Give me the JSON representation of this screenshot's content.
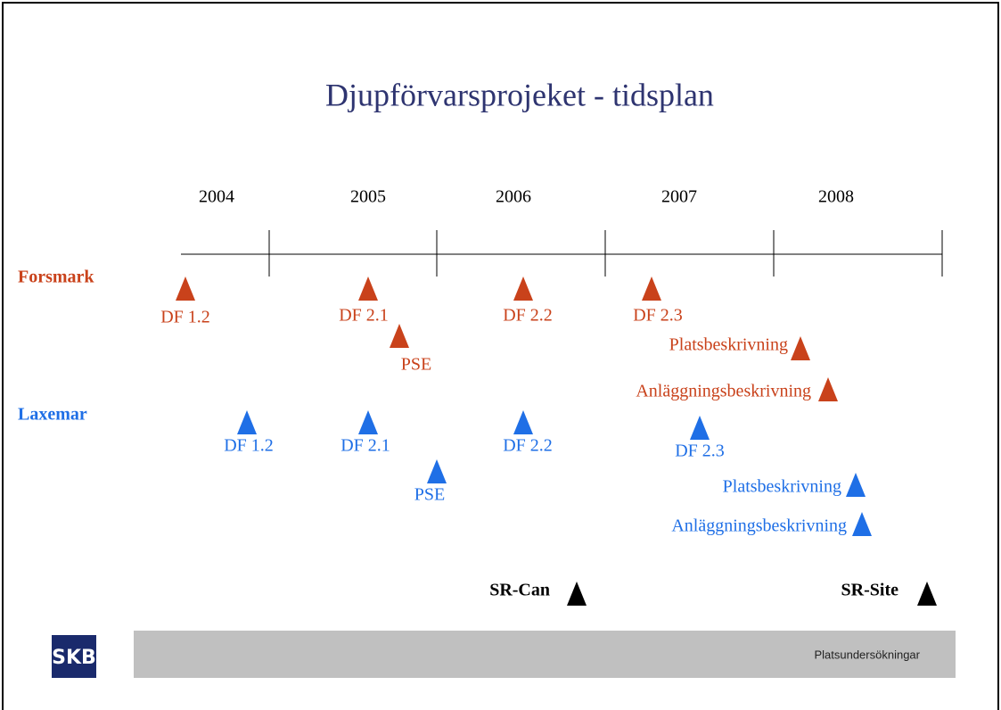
{
  "title": "Djupförvarsprojeket - tidsplan",
  "years": [
    "2004",
    "2005",
    "2006",
    "2007",
    "2008"
  ],
  "rows": [
    {
      "name": "Forsmark",
      "milestones": [
        {
          "label": "DF 1.2"
        },
        {
          "label": "DF 2.1"
        },
        {
          "label": "DF 2.2"
        },
        {
          "label": "DF 2.3"
        },
        {
          "label": "PSE"
        },
        {
          "label": "Platsbeskrivning"
        },
        {
          "label": "Anläggningsbeskrivning"
        }
      ]
    },
    {
      "name": "Laxemar",
      "milestones": [
        {
          "label": "DF 1.2"
        },
        {
          "label": "DF 2.1"
        },
        {
          "label": "DF 2.2"
        },
        {
          "label": "DF 2.3"
        },
        {
          "label": "PSE"
        },
        {
          "label": "Platsbeskrivning"
        },
        {
          "label": "Anläggningsbeskrivning"
        }
      ]
    }
  ],
  "reports": [
    {
      "label": "SR-Can"
    },
    {
      "label": "SR-Site"
    }
  ],
  "footer": {
    "logo": "SKB",
    "text": "Platsundersökningar"
  }
}
